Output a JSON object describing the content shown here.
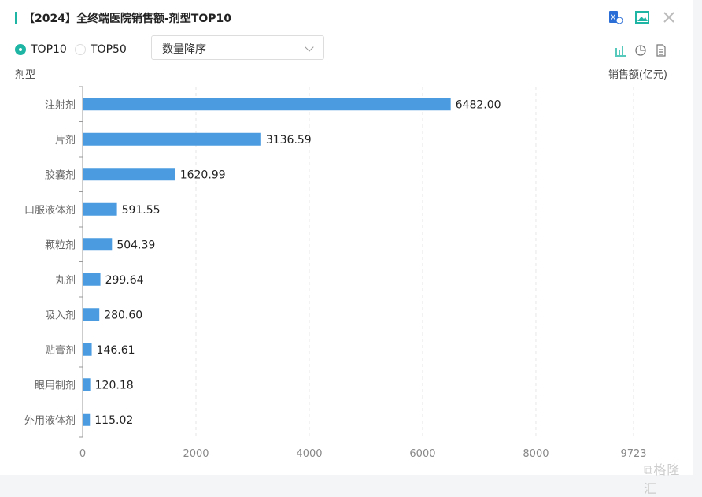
{
  "header": {
    "title": "【2024】全终端医院销售额-剂型TOP10",
    "icons": [
      "excel-export-icon",
      "image-export-icon",
      "close-icon"
    ]
  },
  "controls": {
    "radio_options": [
      {
        "label": "TOP10",
        "selected": true
      },
      {
        "label": "TOP50",
        "selected": false
      }
    ],
    "sort_select": "数量降序",
    "view_icons": [
      "bar-chart-icon",
      "pie-chart-icon",
      "table-icon"
    ]
  },
  "watermark": "格隆汇",
  "colors": {
    "accent": "#1fb5a5",
    "bar": "#4a9be0"
  },
  "chart_data": {
    "type": "bar",
    "orientation": "horizontal",
    "ylabel": "剂型",
    "xlabel": "销售额(亿元)",
    "categories": [
      "注射剂",
      "片剂",
      "胶囊剂",
      "口服液体剂",
      "颗粒剂",
      "丸剂",
      "吸入剂",
      "贴膏剂",
      "眼用制剂",
      "外用液体剂"
    ],
    "values": [
      6482.0,
      3136.59,
      1620.99,
      591.55,
      504.39,
      299.64,
      280.6,
      146.61,
      120.18,
      115.02
    ],
    "data_labels": [
      "6482.00",
      "3136.59",
      "1620.99",
      "591.55",
      "504.39",
      "299.64",
      "280.60",
      "146.61",
      "120.18",
      "115.02"
    ],
    "xticks": [
      0,
      2000,
      4000,
      6000,
      8000,
      9723
    ],
    "xlim": [
      0,
      9723
    ],
    "grid": true,
    "legend": "none"
  }
}
